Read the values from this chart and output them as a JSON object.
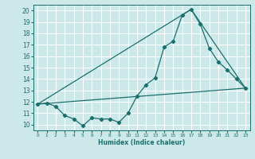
{
  "xlabel": "Humidex (Indice chaleur)",
  "bg_color": "#cce8e8",
  "grid_color": "#ffffff",
  "line_color": "#1a6e6e",
  "xlim": [
    -0.5,
    23.5
  ],
  "ylim": [
    9.5,
    20.5
  ],
  "xticks": [
    0,
    1,
    2,
    3,
    4,
    5,
    6,
    7,
    8,
    9,
    10,
    11,
    12,
    13,
    14,
    15,
    16,
    17,
    18,
    19,
    20,
    21,
    22,
    23
  ],
  "yticks": [
    10,
    11,
    12,
    13,
    14,
    15,
    16,
    17,
    18,
    19,
    20
  ],
  "line1_x": [
    0,
    1,
    2,
    3,
    4,
    5,
    6,
    7,
    8,
    9,
    10,
    11,
    12,
    13,
    14,
    15,
    16,
    17,
    18,
    19,
    20,
    21,
    22,
    23
  ],
  "line1_y": [
    11.8,
    11.9,
    11.6,
    10.8,
    10.5,
    9.9,
    10.6,
    10.5,
    10.5,
    10.2,
    11.0,
    12.5,
    13.5,
    14.1,
    16.8,
    17.3,
    19.6,
    20.1,
    18.8,
    16.7,
    15.5,
    14.8,
    14.0,
    13.2
  ],
  "line2_x": [
    0,
    23
  ],
  "line2_y": [
    11.8,
    13.2
  ],
  "line3_x": [
    0,
    17,
    23
  ],
  "line3_y": [
    11.8,
    20.1,
    13.2
  ]
}
